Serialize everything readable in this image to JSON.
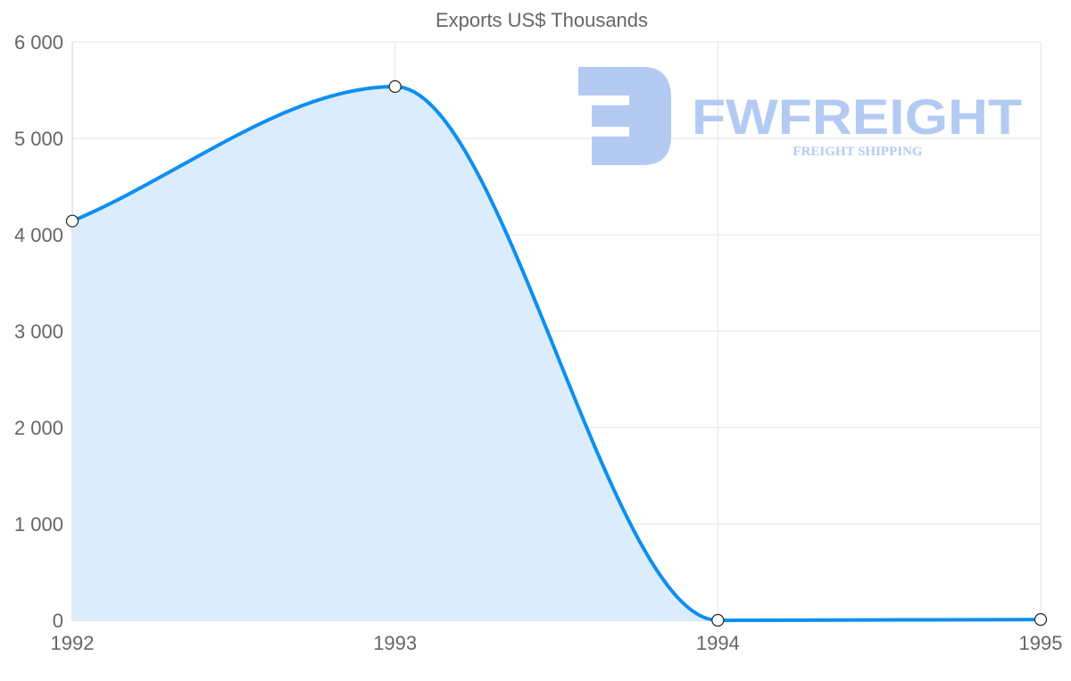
{
  "chart_data": {
    "type": "area",
    "title": "Exports US$ Thousands",
    "xlabel": "",
    "ylabel": "",
    "categories": [
      "1992",
      "1993",
      "1994",
      "1995"
    ],
    "series": [
      {
        "name": "Exports US$ Thousands",
        "values": [
          4142,
          5537,
          0,
          8
        ]
      }
    ],
    "ylim": [
      0,
      6000
    ],
    "yticks": [
      0,
      1000,
      2000,
      3000,
      4000,
      5000,
      6000
    ],
    "ytick_labels": [
      "0",
      "1 000",
      "2 000",
      "3 000",
      "4 000",
      "5 000",
      "6 000"
    ],
    "grid": true,
    "legend": "none",
    "colors": {
      "line": "#0d8ff0",
      "fill": "#d9ecfd",
      "grid": "#e3e3e3"
    }
  },
  "watermark": {
    "brand": "FWFREIGHT",
    "tagline": "FREIGHT SHIPPING",
    "color": "#b3cbf3"
  }
}
